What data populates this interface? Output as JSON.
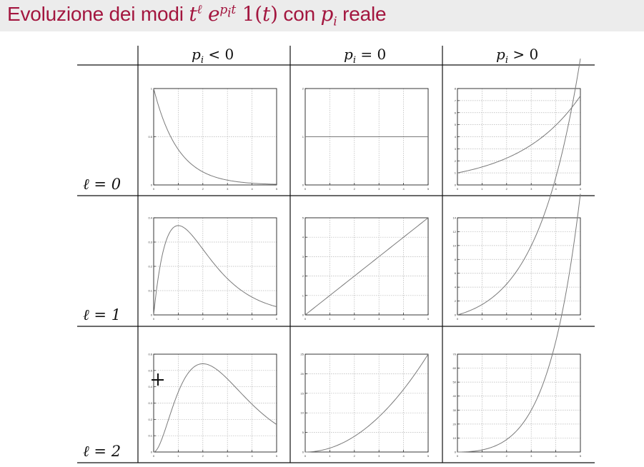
{
  "title": {
    "prefix": "Evoluzione dei modi ",
    "suffix_text": " con ",
    "tail": " reale"
  },
  "columns": [
    {
      "lhs": "p",
      "sub": "i",
      "op": " < 0"
    },
    {
      "lhs": "p",
      "sub": "i",
      "op": " = 0"
    },
    {
      "lhs": "p",
      "sub": "i",
      "op": " > 0"
    }
  ],
  "rows": [
    {
      "label": "ℓ = 0"
    },
    {
      "label": "ℓ = 1"
    },
    {
      "label": "ℓ = 2"
    }
  ],
  "colors": {
    "title": "#a3163f",
    "curve": "#7a7a7a",
    "axes": "#222222",
    "gridline": "#b5b5b5"
  },
  "chart_data": [
    {
      "type": "line",
      "row": 0,
      "col": 0,
      "function": "t^0*exp(-t)",
      "xlim": [
        0,
        5
      ],
      "ylim": [
        0,
        1
      ],
      "xticks": [
        "0",
        "1",
        "2",
        "3",
        "4",
        "5"
      ],
      "yticks": [
        "0",
        "0.5",
        "1"
      ]
    },
    {
      "type": "line",
      "row": 0,
      "col": 1,
      "function": "1",
      "xlim": [
        0,
        5
      ],
      "ylim": [
        0,
        2
      ],
      "xticks": [
        "0",
        "1",
        "2",
        "3",
        "4",
        "5"
      ],
      "yticks": [
        "0",
        "1",
        "2"
      ]
    },
    {
      "type": "line",
      "row": 0,
      "col": 2,
      "function": "exp(0.4t)",
      "xlim": [
        0,
        5
      ],
      "ylim": [
        0,
        8
      ],
      "xticks": [
        "0",
        "1",
        "2",
        "3",
        "4",
        "5"
      ],
      "yticks": [
        "0",
        "1",
        "2",
        "3",
        "4",
        "5",
        "6",
        "7",
        "8"
      ]
    },
    {
      "type": "line",
      "row": 1,
      "col": 0,
      "function": "t*exp(-t)",
      "xlim": [
        0,
        5
      ],
      "ylim": [
        0,
        0.4
      ],
      "xticks": [
        "0",
        "1",
        "2",
        "3",
        "4",
        "5"
      ],
      "yticks": [
        "0",
        "0.1",
        "0.2",
        "0.3",
        "0.4"
      ]
    },
    {
      "type": "line",
      "row": 1,
      "col": 1,
      "function": "t",
      "xlim": [
        0,
        5
      ],
      "ylim": [
        0,
        5
      ],
      "xticks": [
        "0",
        "1",
        "2",
        "3",
        "4",
        "5"
      ],
      "yticks": [
        "0",
        "1",
        "2",
        "3",
        "4",
        "5"
      ]
    },
    {
      "type": "line",
      "row": 1,
      "col": 2,
      "function": "t*exp(0.4t)",
      "xlim": [
        0,
        5
      ],
      "ylim": [
        0,
        14
      ],
      "xticks": [
        "0",
        "1",
        "2",
        "3",
        "4",
        "5"
      ],
      "yticks": [
        "0",
        "2",
        "4",
        "6",
        "8",
        "10",
        "12",
        "14"
      ]
    },
    {
      "type": "line",
      "row": 2,
      "col": 0,
      "function": "t^2*exp(-t)",
      "xlim": [
        0,
        5
      ],
      "ylim": [
        0,
        0.6
      ],
      "xticks": [
        "0",
        "1",
        "2",
        "3",
        "4",
        "5"
      ],
      "yticks": [
        "0",
        "0.1",
        "0.2",
        "0.3",
        "0.4",
        "0.5",
        "0.6"
      ]
    },
    {
      "type": "line",
      "row": 2,
      "col": 1,
      "function": "t^2",
      "xlim": [
        0,
        5
      ],
      "ylim": [
        0,
        25
      ],
      "xticks": [
        "0",
        "1",
        "2",
        "3",
        "4",
        "5"
      ],
      "yticks": [
        "0",
        "5",
        "10",
        "15",
        "20",
        "25"
      ]
    },
    {
      "type": "line",
      "row": 2,
      "col": 2,
      "function": "t^2*exp(0.4t)",
      "xlim": [
        0,
        5
      ],
      "ylim": [
        0,
        70
      ],
      "xticks": [
        "0",
        "1",
        "2",
        "3",
        "4",
        "5"
      ],
      "yticks": [
        "0",
        "10",
        "20",
        "30",
        "40",
        "50",
        "60",
        "70"
      ]
    }
  ]
}
